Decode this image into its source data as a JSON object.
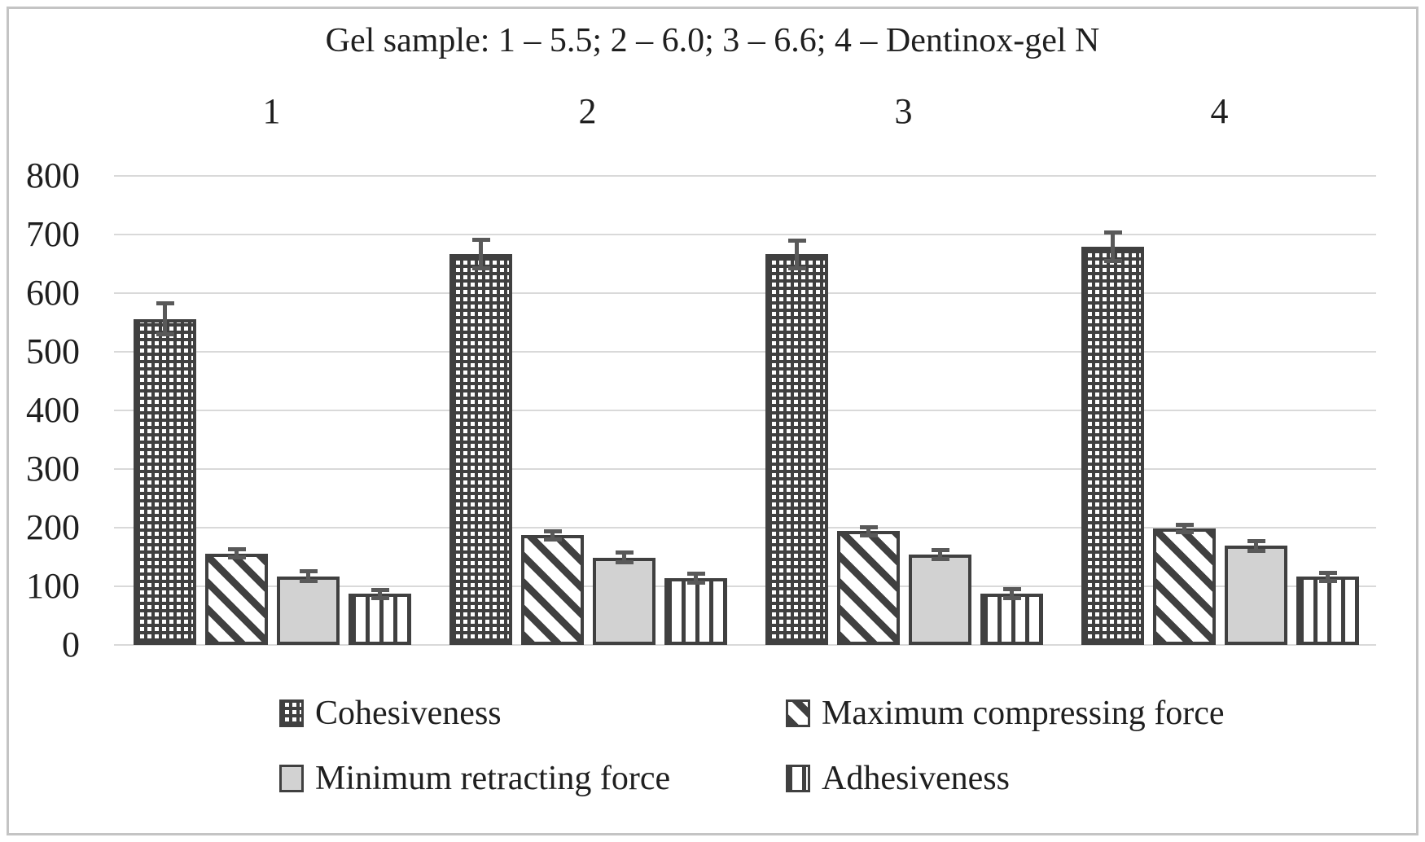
{
  "chart_data": {
    "type": "bar",
    "title": "Gel sample: 1 – 5.5; 2 – 6.0; 3 – 6.6; 4 – Dentinox-gel N",
    "categories": [
      "1",
      "2",
      "3",
      "4"
    ],
    "sample_labels": {
      "1": "5.5",
      "2": "6.0",
      "3": "6.6",
      "4": "Dentinox-gel N"
    },
    "series": [
      {
        "name": "Cohesiveness",
        "pattern": "dots",
        "values": [
          556,
          667,
          666,
          679
        ],
        "errors": [
          30,
          28,
          27,
          28
        ]
      },
      {
        "name": "Maximum compressing force",
        "pattern": "diagonal-stripes",
        "values": [
          156,
          187,
          194,
          199
        ],
        "errors": [
          10,
          10,
          10,
          10
        ]
      },
      {
        "name": "Minimum retracting force",
        "pattern": "solid",
        "values": [
          117,
          149,
          154,
          169
        ],
        "errors": [
          12,
          12,
          11,
          12
        ]
      },
      {
        "name": "Adhesiveness",
        "pattern": "vertical-stripes",
        "values": [
          87,
          114,
          88,
          116
        ],
        "errors": [
          10,
          11,
          11,
          10
        ]
      }
    ],
    "ylim": [
      0,
      800
    ],
    "ytick_step": 100,
    "yticks": [
      "0",
      "100",
      "200",
      "300",
      "400",
      "500",
      "600",
      "700",
      "800"
    ],
    "grid": true,
    "error_bars": true,
    "legend_position": "bottom",
    "colors": {
      "bar_dark": "#404040",
      "bar_gray_fill": "#d2d2d2",
      "gridline": "#d9d9d9",
      "error_bar": "#595959",
      "chart_border": "#c4c4c4",
      "text": "#1f1f1f",
      "background": "#ffffff"
    }
  }
}
